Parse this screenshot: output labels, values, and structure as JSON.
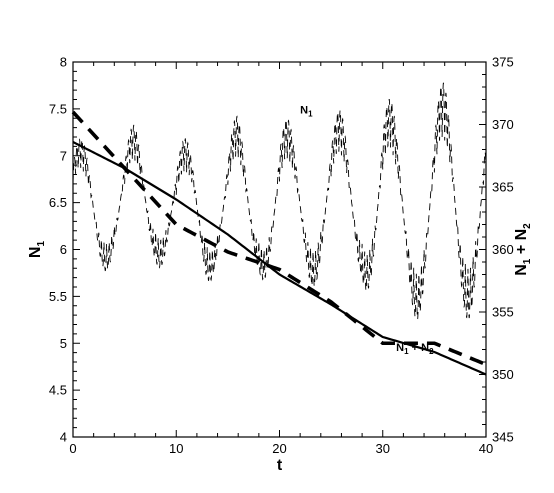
{
  "chart_data": {
    "type": "line",
    "xlabel": "t",
    "ylabel_left": "N",
    "ylabel_left_sub": "1",
    "ylabel_right": "N",
    "ylabel_right_sub1": "1",
    "ylabel_right_mid": " + N",
    "ylabel_right_sub2": "2",
    "xlim": [
      0,
      40
    ],
    "ylim_left": [
      4,
      8
    ],
    "ylim_right": [
      345,
      375
    ],
    "x_ticks": [
      0,
      10,
      20,
      30,
      40
    ],
    "y_left_ticks": [
      4,
      4.5,
      5,
      5.5,
      6,
      6.5,
      7,
      7.5,
      8
    ],
    "y_right_ticks": [
      345,
      350,
      355,
      360,
      365,
      370,
      375
    ],
    "grid": false,
    "annotations": [
      {
        "text": "N",
        "sub": "1",
        "x": 22.0,
        "y": 7.45
      },
      {
        "text": "N",
        "sub": "1",
        "mid": " + N",
        "sub2": "2",
        "x": 31.3,
        "y": 4.92
      }
    ],
    "series": [
      {
        "axis": "left",
        "style": "dashed-thin",
        "x": [
          0,
          2,
          4,
          6,
          8,
          10,
          12,
          14,
          16,
          18,
          20,
          22,
          24,
          26,
          28,
          30,
          32,
          34,
          36,
          38,
          40
        ],
        "y_center": [
          6.5,
          6.4,
          6.45,
          6.5,
          6.55,
          6.35,
          6.45,
          6.4,
          6.45,
          6.45,
          6.4,
          6.45,
          6.5,
          6.45,
          6.5,
          6.45,
          6.35,
          6.4,
          6.45,
          6.5,
          6.5
        ],
        "y_amplitude": [
          0.7,
          0.75,
          0.6,
          0.85,
          0.7,
          0.75,
          0.85,
          0.7,
          1.0,
          0.7,
          1.05,
          0.85,
          0.9,
          1.05,
          0.85,
          1.3,
          1.0,
          1.2,
          1.35,
          1.25,
          1.2
        ]
      },
      {
        "axis": "right",
        "style": "solid",
        "x": [
          0,
          5,
          10,
          15,
          20,
          25,
          30,
          35,
          40
        ],
        "y": [
          368.6,
          366.5,
          364.0,
          361.2,
          358.0,
          355.6,
          353.0,
          351.8,
          350.0
        ]
      },
      {
        "axis": "right",
        "style": "dashed-thick",
        "x": [
          0,
          5,
          10,
          15,
          20,
          25,
          30,
          35,
          40
        ],
        "y": [
          371.0,
          366.5,
          362.0,
          359.8,
          358.4,
          355.8,
          352.5,
          352.5,
          350.8
        ]
      }
    ]
  }
}
